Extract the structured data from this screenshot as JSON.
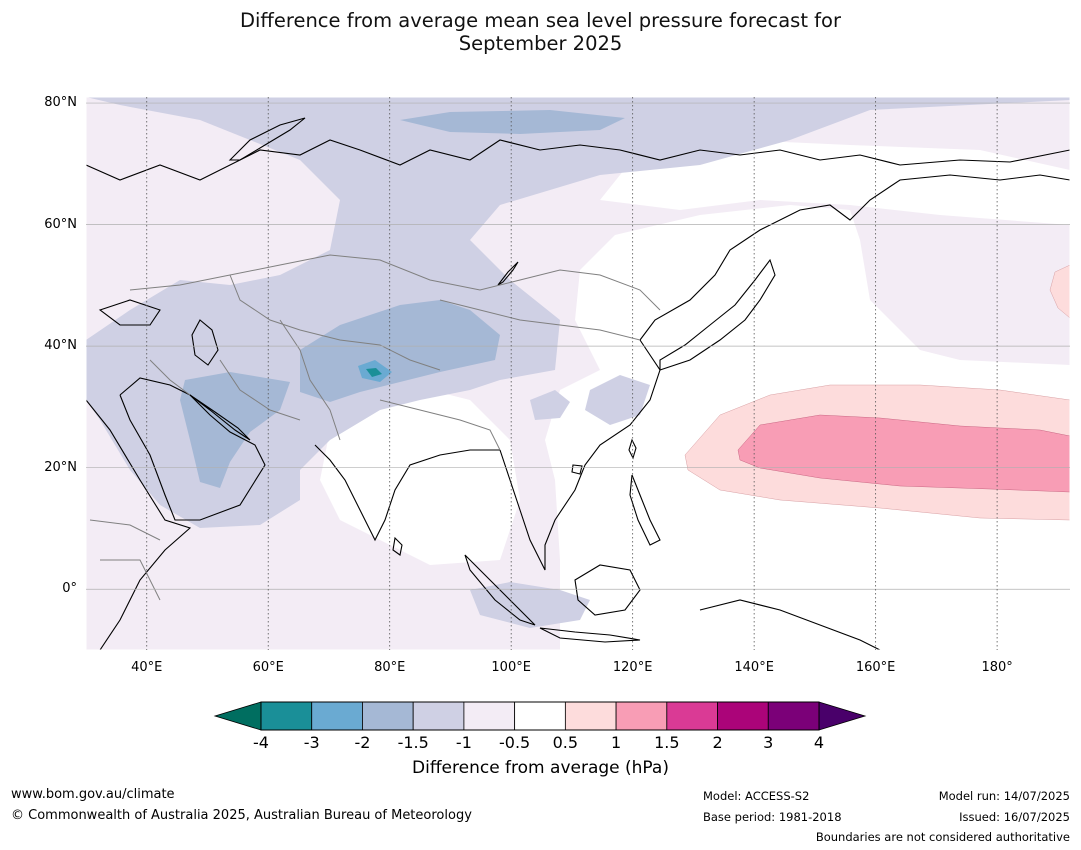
{
  "title": {
    "line1": "Difference from average mean sea level pressure forecast for",
    "line2": "September 2025"
  },
  "map": {
    "lon_range": [
      30,
      192
    ],
    "lat_range": [
      -10,
      81
    ],
    "lat_ticks": [
      {
        "value": 80,
        "label": "80°N"
      },
      {
        "value": 60,
        "label": "60°N"
      },
      {
        "value": 40,
        "label": "40°N"
      },
      {
        "value": 20,
        "label": "20°N"
      },
      {
        "value": 0,
        "label": "0°"
      }
    ],
    "lon_ticks": [
      {
        "value": 40,
        "label": "40°E"
      },
      {
        "value": 60,
        "label": "60°E"
      },
      {
        "value": 80,
        "label": "80°E"
      },
      {
        "value": 100,
        "label": "100°E"
      },
      {
        "value": 120,
        "label": "120°E"
      },
      {
        "value": 140,
        "label": "140°E"
      },
      {
        "value": 160,
        "label": "160°E"
      },
      {
        "value": 180,
        "label": "180°"
      }
    ]
  },
  "colorbar": {
    "title": "Difference from average (hPa)",
    "tick_labels": [
      "-4",
      "-3",
      "-2",
      "-1.5",
      "-1",
      "-0.5",
      "0.5",
      "1",
      "1.5",
      "2",
      "3",
      "4"
    ],
    "colors": [
      "#1a8f98",
      "#6aaad2",
      "#a5b8d5",
      "#cfd0e4",
      "#f3ecf5",
      "#ffffff",
      "#fddcdc",
      "#f89db5",
      "#da3a95",
      "#ab0479",
      "#7b0078"
    ],
    "under_color": "#006e60",
    "over_color": "#49006a"
  },
  "footer": {
    "url": "www.bom.gov.au/climate",
    "copyright": "© Commonwealth of Australia 2025, Australian Bureau of Meteorology",
    "model": "Model: ACCESS-S2",
    "base_period": "Base period: 1981-2018",
    "model_run": "Model run: 14/07/2025",
    "issued": "Issued: 16/07/2025",
    "boundaries_note": "Boundaries are not considered authoritative"
  }
}
